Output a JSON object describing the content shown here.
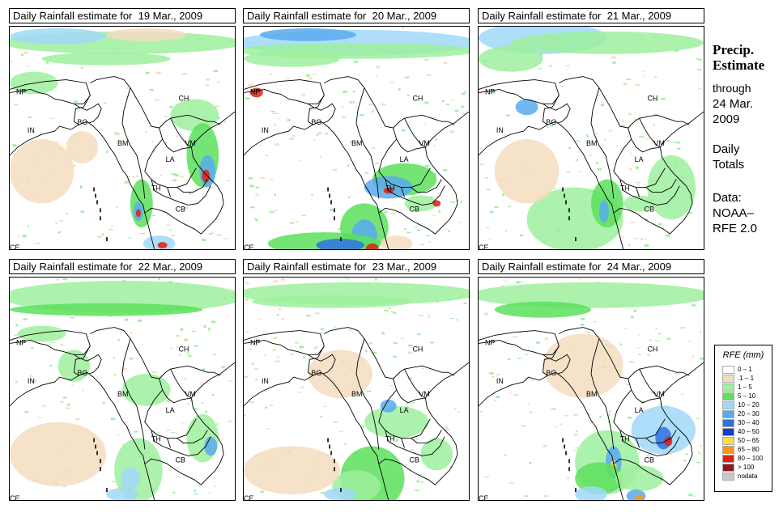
{
  "panels": [
    {
      "title": "Daily Rainfall estimate for  19 Mar., 2009",
      "variant": 0
    },
    {
      "title": "Daily Rainfall estimate for  20 Mar., 2009",
      "variant": 1
    },
    {
      "title": "Daily Rainfall estimate for  21 Mar., 2009",
      "variant": 2
    },
    {
      "title": "Daily Rainfall estimate for  22 Mar., 2009",
      "variant": 3
    },
    {
      "title": "Daily Rainfall estimate for  23 Mar., 2009",
      "variant": 4
    },
    {
      "title": "Daily Rainfall estimate for  24 Mar., 2009",
      "variant": 5
    }
  ],
  "country_labels": [
    "NP",
    "CH",
    "IN",
    "BG",
    "BM",
    "VM",
    "LA",
    "TH",
    "CB",
    "CE"
  ],
  "side": {
    "title_line1": "Precip.",
    "title_line2": "Estimate",
    "through": "through",
    "date_line1": "24 Mar.",
    "date_line2": "2009",
    "totals_line1": "Daily",
    "totals_line2": "Totals",
    "data_line1": "Data:",
    "data_line2": "NOAA–",
    "data_line3": "RFE 2.0"
  },
  "legend": {
    "title": "RFE (mm)",
    "items": [
      {
        "label": "0 – 1",
        "color": "#ffffff"
      },
      {
        "label": ".1 – 1",
        "color": "#f5dcc0"
      },
      {
        "label": "1 – 5",
        "color": "#9ef09e"
      },
      {
        "label": "5 – 10",
        "color": "#5ce05c"
      },
      {
        "label": "10 – 20",
        "color": "#a0d8f8"
      },
      {
        "label": "20 – 30",
        "color": "#5aaaf0"
      },
      {
        "label": "30 – 40",
        "color": "#2e72e0"
      },
      {
        "label": "40 – 50",
        "color": "#1a3ccc"
      },
      {
        "label": "50 – 65",
        "color": "#f8e048"
      },
      {
        "label": "65 – 80",
        "color": "#f89818"
      },
      {
        "label": "80 – 100",
        "color": "#e02010"
      },
      {
        "label": "> 100",
        "color": "#901818"
      },
      {
        "label": "nodata",
        "color": "#c8c8c8"
      }
    ]
  }
}
